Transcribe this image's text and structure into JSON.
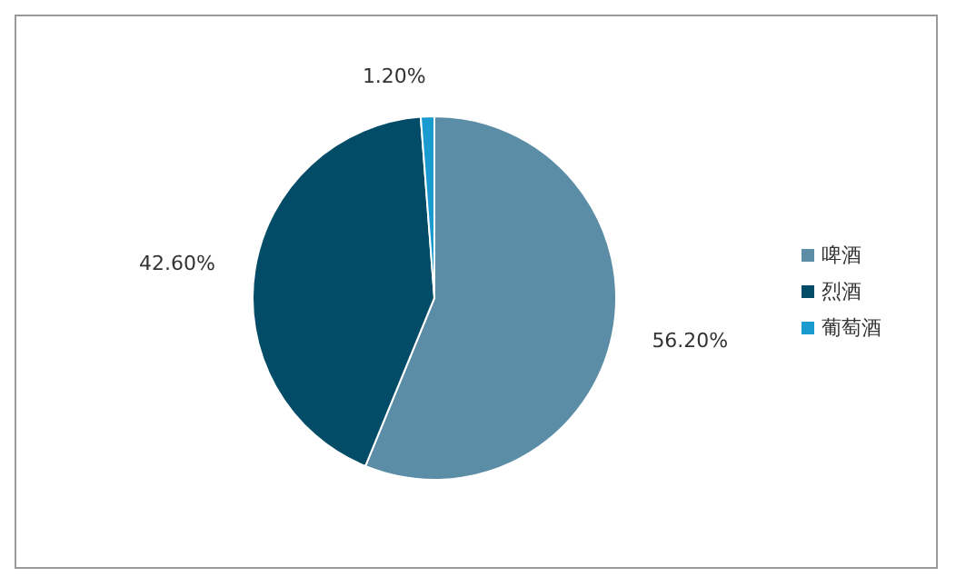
{
  "chart_data": {
    "type": "pie",
    "categories": [
      "啤酒",
      "烈酒",
      "葡萄酒"
    ],
    "values": [
      56.2,
      42.6,
      1.2
    ],
    "colors": [
      "#5b8ea6",
      "#034c68",
      "#1a9bd0"
    ],
    "value_labels": [
      "56.20%",
      "42.60%",
      "1.20%"
    ],
    "legend": "right"
  }
}
